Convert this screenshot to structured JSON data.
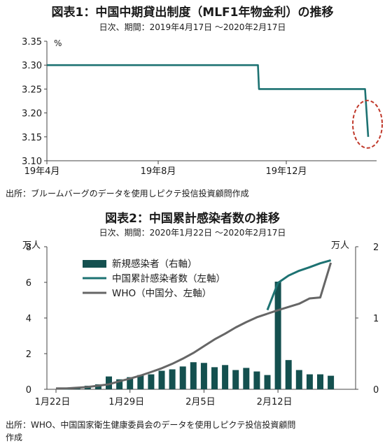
{
  "charts": [
    {
      "title": "図表1：中国中期貸出制度（MLF1年物金利）の推移",
      "subtitle": "日次、期間：2019年4月17日 ～2020年2月17日",
      "source": "出所：ブルームバーグのデータを使用しピクテ投信投資顧問作成"
    },
    {
      "title": "図表2：中国累計感染者数の推移",
      "subtitle": "日次、期間：2020年1月22日 ～2020年2月17日",
      "source_line1": "出所：WHO、中国国家衛生健康委員会のデータを使用しピクテ投信投資顧問",
      "source_line2": "作成"
    }
  ],
  "colors": {
    "teal": "#1d7272",
    "dark_teal": "#14504f",
    "gray": "#666666",
    "highlight": "#c0392b"
  },
  "chart_data": [
    {
      "type": "line",
      "ylabel": "%",
      "ylim": [
        3.1,
        3.35
      ],
      "yticks": [
        "3.10",
        "3.15",
        "3.20",
        "3.25",
        "3.30",
        "3.35"
      ],
      "xticks": [
        "19年4月",
        "19年8月",
        "19年12月"
      ],
      "x": [
        "2019-04-17",
        "2019-11-04",
        "2019-11-05",
        "2020-02-14",
        "2020-02-17"
      ],
      "values": [
        3.3,
        3.3,
        3.25,
        3.25,
        3.15
      ],
      "highlight": "last point circled"
    },
    {
      "type": "bar+line",
      "ylim_left": [
        0,
        8
      ],
      "ylim_right": [
        0,
        2
      ],
      "yticks_left": [
        "0",
        "2",
        "4",
        "6",
        "8"
      ],
      "yticks_right": [
        "0",
        "1",
        "2"
      ],
      "unit_left": "万人",
      "unit_right": "万人",
      "xticks": [
        "1月22日",
        "1月29日",
        "2月5日",
        "2月12日"
      ],
      "x": [
        "1/22",
        "1/23",
        "1/24",
        "1/25",
        "1/26",
        "1/27",
        "1/28",
        "1/29",
        "1/30",
        "1/31",
        "2/1",
        "2/2",
        "2/3",
        "2/4",
        "2/5",
        "2/6",
        "2/7",
        "2/8",
        "2/9",
        "2/10",
        "2/11",
        "2/12",
        "2/13",
        "2/14",
        "2/15",
        "2/16",
        "2/17"
      ],
      "series": [
        {
          "name": "新規感染者（右軸）",
          "type": "bar",
          "axis": "right",
          "values": [
            null,
            0.0,
            0.03,
            0.05,
            0.07,
            0.18,
            0.14,
            0.17,
            0.2,
            0.21,
            0.26,
            0.28,
            0.32,
            0.38,
            0.37,
            0.31,
            0.34,
            0.27,
            0.3,
            0.25,
            0.2,
            1.51,
            0.41,
            0.27,
            0.21,
            0.21,
            0.19
          ]
        },
        {
          "name": "中国累計感染者数（左軸）",
          "type": "line",
          "axis": "left",
          "values": [
            null,
            null,
            null,
            null,
            null,
            null,
            null,
            null,
            null,
            null,
            null,
            null,
            null,
            null,
            null,
            null,
            null,
            null,
            null,
            null,
            4.45,
            5.97,
            6.38,
            6.65,
            6.85,
            7.07,
            7.24
          ]
        },
        {
          "name": "WHO（中国分、左軸）",
          "type": "line",
          "axis": "left",
          "values": [
            0.05,
            0.05,
            0.09,
            0.13,
            0.2,
            0.28,
            0.45,
            0.6,
            0.77,
            0.97,
            1.18,
            1.43,
            1.72,
            2.04,
            2.42,
            2.8,
            3.12,
            3.47,
            3.77,
            4.04,
            4.24,
            4.44,
            4.62,
            4.8,
            5.1,
            5.15,
            7.1
          ]
        }
      ]
    }
  ]
}
